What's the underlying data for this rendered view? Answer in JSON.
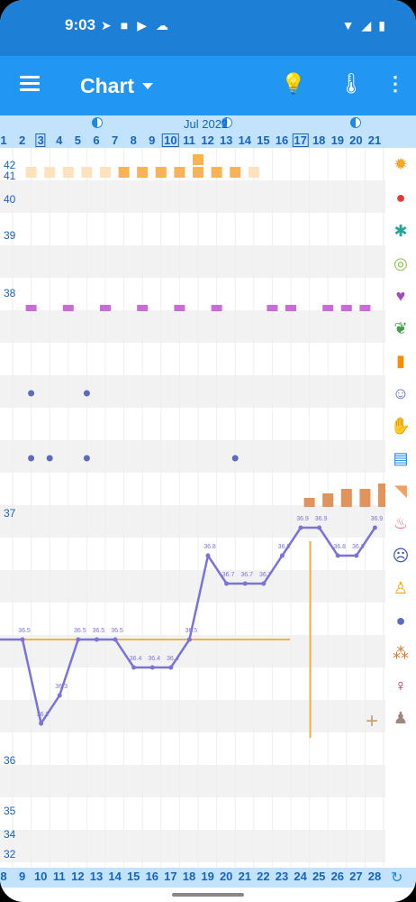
{
  "status": {
    "time": "9:03"
  },
  "appbar": {
    "title": "Chart"
  },
  "header": {
    "month": "Jul 2022",
    "days": [
      "1",
      "2",
      "3",
      "4",
      "5",
      "6",
      "7",
      "8",
      "9",
      "10",
      "11",
      "12",
      "13",
      "14",
      "15",
      "16",
      "17",
      "18",
      "19",
      "20",
      "21"
    ],
    "boxed_days": [
      "3",
      "10",
      "17"
    ]
  },
  "footer": {
    "days": [
      "8",
      "9",
      "10",
      "11",
      "12",
      "13",
      "14",
      "15",
      "16",
      "17",
      "18",
      "19",
      "20",
      "21",
      "22",
      "23",
      "24",
      "25",
      "26",
      "27",
      "28"
    ]
  },
  "y_labels": {
    "top": [
      "42",
      "41",
      "40",
      "39",
      "38",
      "37",
      "36",
      "35",
      "34",
      "32"
    ]
  },
  "chart_data": {
    "type": "line",
    "x_days": [
      2,
      3,
      4,
      5,
      6,
      7,
      8,
      9,
      10,
      11,
      12,
      13,
      14,
      15,
      16,
      17,
      18,
      19,
      20,
      21
    ],
    "temperature": [
      36.5,
      36.2,
      36.3,
      36.5,
      36.5,
      36.5,
      36.4,
      36.4,
      36.4,
      36.5,
      36.8,
      36.7,
      36.7,
      36.7,
      36.8,
      36.9,
      36.9,
      36.8,
      36.8,
      36.9
    ],
    "temperature_labels": [
      "36.5",
      "36.2",
      "36.3",
      "36.5",
      "36.5",
      "36.5",
      "36.4",
      "36.4",
      "36.4",
      "36.5",
      "36.8",
      "36.7",
      "36.7",
      "36.7",
      "36.8",
      "36.9",
      "36.9",
      "36.8",
      "36.8",
      "36.9"
    ],
    "coverline": 36.5,
    "shift_day": 18,
    "colors": {
      "line": "#7b73d6",
      "coverline": "#f0b04a",
      "dots": "#5c6bc0"
    }
  },
  "icons": [
    "sun-icon",
    "drop-icon",
    "splash-icon",
    "rings-icon",
    "heart-icon",
    "leaf-icon",
    "pill-icon",
    "smile-icon",
    "hand-icon",
    "document-icon",
    "test-icon",
    "cervix-icon",
    "mood-icon",
    "person-icon",
    "balloon-icon",
    "dots-icon",
    "pregnant-icon",
    "user-icon"
  ]
}
